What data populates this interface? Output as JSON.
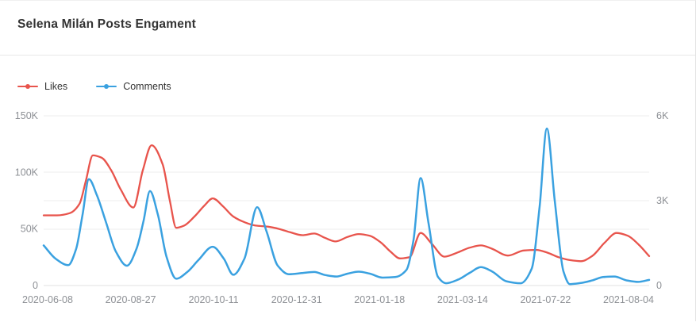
{
  "header": {
    "title": "Selena Milán Posts Engament"
  },
  "colors": {
    "likes": "#e8544c",
    "comments": "#3aa1e0",
    "gridline": "#ededed",
    "axis_baseline": "#e0e0e0",
    "axis_label": "#8d9095",
    "title": "#333333",
    "header_divider": "#e8e8e8"
  },
  "chart_data": {
    "type": "line",
    "title": "Selena Milán Posts Engament",
    "xlabel": "",
    "grid": true,
    "legend_position": "top-left",
    "legend": [
      "Likes",
      "Comments"
    ],
    "x_tick_labels": [
      "2020-06-08",
      "2020-08-27",
      "2020-10-11",
      "2020-12-31",
      "2021-01-18",
      "2021-03-14",
      "2021-07-22",
      "2021-08-04"
    ],
    "x_note": "category axis; series points use fractional position 0-1 across the axis",
    "y_left": {
      "name": "Likes",
      "max": 150000,
      "ticks": [
        {
          "v": 0,
          "label": "0"
        },
        {
          "v": 50000,
          "label": "50K"
        },
        {
          "v": 100000,
          "label": "100K"
        },
        {
          "v": 150000,
          "label": "150K"
        }
      ]
    },
    "y_right": {
      "name": "Comments",
      "max": 6000,
      "ticks": [
        {
          "v": 0,
          "label": "0"
        },
        {
          "v": 3000,
          "label": "3K"
        },
        {
          "v": 6000,
          "label": "6K"
        }
      ]
    },
    "series": [
      {
        "name": "Likes",
        "axis": "left",
        "color": "#e8544c",
        "points": [
          [
            0.0,
            62000
          ],
          [
            0.0223,
            62000
          ],
          [
            0.0433,
            64000
          ],
          [
            0.059,
            72000
          ],
          [
            0.0695,
            92000
          ],
          [
            0.0813,
            115000
          ],
          [
            0.0957,
            113000
          ],
          [
            0.1114,
            102000
          ],
          [
            0.1271,
            85000
          ],
          [
            0.1481,
            69000
          ],
          [
            0.1638,
            102000
          ],
          [
            0.1783,
            124000
          ],
          [
            0.1966,
            107000
          ],
          [
            0.2084,
            75000
          ],
          [
            0.2189,
            51000
          ],
          [
            0.232,
            53000
          ],
          [
            0.249,
            61000
          ],
          [
            0.2661,
            71000
          ],
          [
            0.2792,
            77000
          ],
          [
            0.2962,
            70000
          ],
          [
            0.3132,
            61000
          ],
          [
            0.3316,
            56000
          ],
          [
            0.3499,
            53000
          ],
          [
            0.3709,
            52000
          ],
          [
            0.3893,
            50000
          ],
          [
            0.4076,
            47000
          ],
          [
            0.4273,
            44500
          ],
          [
            0.4469,
            46000
          ],
          [
            0.4653,
            42000
          ],
          [
            0.4823,
            39000
          ],
          [
            0.502,
            43000
          ],
          [
            0.5203,
            45500
          ],
          [
            0.5387,
            44000
          ],
          [
            0.557,
            38000
          ],
          [
            0.5727,
            30000
          ],
          [
            0.5885,
            24000
          ],
          [
            0.6042,
            25000
          ],
          [
            0.6225,
            46500
          ],
          [
            0.6409,
            37000
          ],
          [
            0.6619,
            25500
          ],
          [
            0.6828,
            29000
          ],
          [
            0.7038,
            33500
          ],
          [
            0.7222,
            35500
          ],
          [
            0.7405,
            32500
          ],
          [
            0.7667,
            26500
          ],
          [
            0.7929,
            31000
          ],
          [
            0.8139,
            31500
          ],
          [
            0.8323,
            29000
          ],
          [
            0.8506,
            25000
          ],
          [
            0.869,
            22500
          ],
          [
            0.8873,
            21500
          ],
          [
            0.9057,
            26000
          ],
          [
            0.9266,
            38000
          ],
          [
            0.9463,
            46500
          ],
          [
            0.9646,
            44000
          ],
          [
            0.983,
            36000
          ],
          [
            1.0,
            26000
          ]
        ]
      },
      {
        "name": "Comments",
        "axis": "right",
        "color": "#3aa1e0",
        "points": [
          [
            0.0,
            1420
          ],
          [
            0.0197,
            950
          ],
          [
            0.0406,
            720
          ],
          [
            0.0537,
            1300
          ],
          [
            0.0642,
            2500
          ],
          [
            0.0747,
            3760
          ],
          [
            0.0878,
            3200
          ],
          [
            0.1035,
            2200
          ],
          [
            0.1193,
            1200
          ],
          [
            0.1376,
            700
          ],
          [
            0.1533,
            1300
          ],
          [
            0.1651,
            2300
          ],
          [
            0.1756,
            3340
          ],
          [
            0.1887,
            2500
          ],
          [
            0.2031,
            1000
          ],
          [
            0.2189,
            240
          ],
          [
            0.2372,
            480
          ],
          [
            0.2556,
            900
          ],
          [
            0.2792,
            1370
          ],
          [
            0.2975,
            950
          ],
          [
            0.3132,
            380
          ],
          [
            0.3316,
            950
          ],
          [
            0.3526,
            2770
          ],
          [
            0.3683,
            1900
          ],
          [
            0.3866,
            700
          ],
          [
            0.405,
            400
          ],
          [
            0.426,
            440
          ],
          [
            0.4469,
            480
          ],
          [
            0.4653,
            370
          ],
          [
            0.4837,
            320
          ],
          [
            0.502,
            420
          ],
          [
            0.5203,
            490
          ],
          [
            0.5387,
            420
          ],
          [
            0.5596,
            280
          ],
          [
            0.5806,
            300
          ],
          [
            0.599,
            550
          ],
          [
            0.6107,
            1600
          ],
          [
            0.6225,
            3800
          ],
          [
            0.6356,
            2200
          ],
          [
            0.6514,
            300
          ],
          [
            0.6645,
            80
          ],
          [
            0.6855,
            220
          ],
          [
            0.7038,
            450
          ],
          [
            0.7222,
            650
          ],
          [
            0.7405,
            500
          ],
          [
            0.7641,
            150
          ],
          [
            0.7877,
            80
          ],
          [
            0.806,
            600
          ],
          [
            0.8191,
            2800
          ],
          [
            0.831,
            5550
          ],
          [
            0.8441,
            3000
          ],
          [
            0.8585,
            500
          ],
          [
            0.869,
            50
          ],
          [
            0.8873,
            90
          ],
          [
            0.9057,
            180
          ],
          [
            0.924,
            300
          ],
          [
            0.9423,
            320
          ],
          [
            0.9633,
            180
          ],
          [
            0.9817,
            130
          ],
          [
            1.0,
            200
          ]
        ]
      }
    ]
  }
}
